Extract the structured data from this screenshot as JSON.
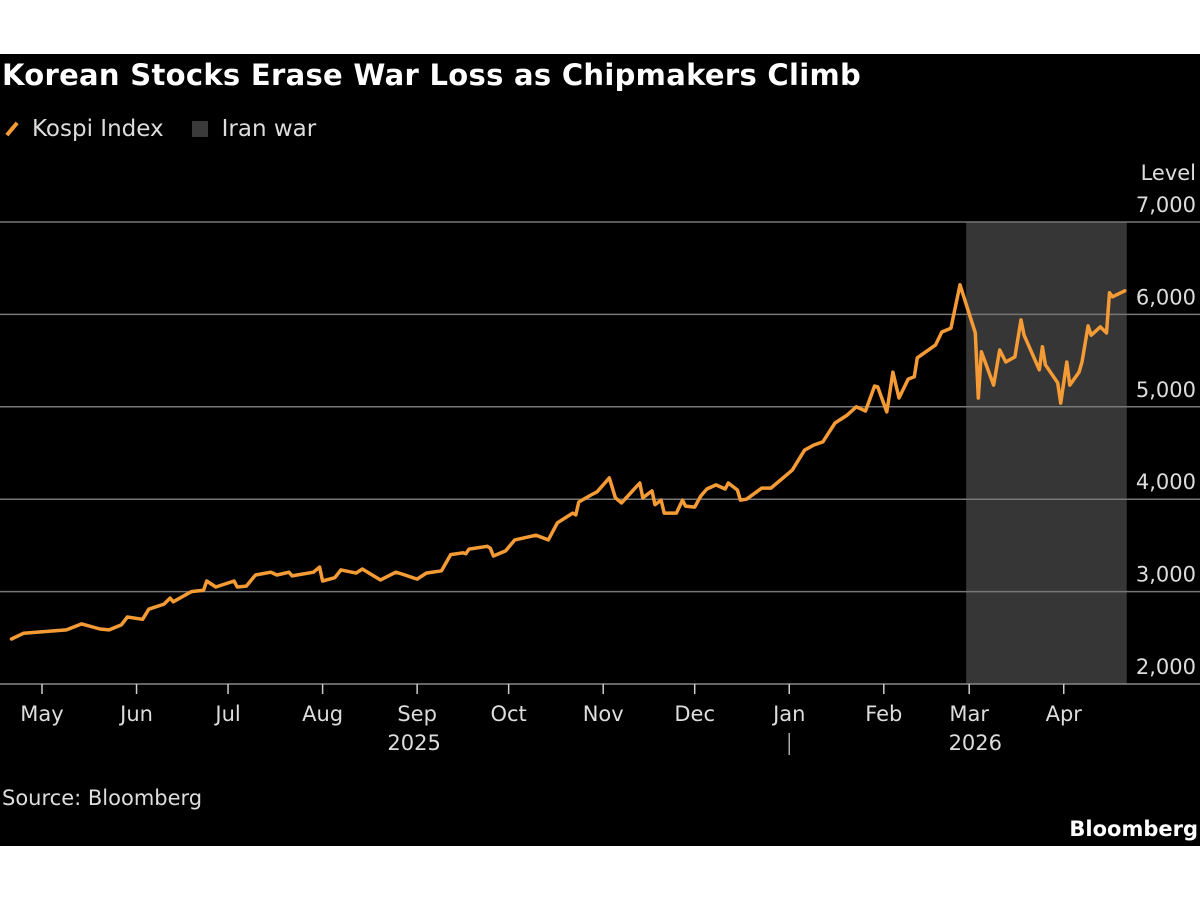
{
  "title": "Korean Stocks Erase War Loss as Chipmakers Climb",
  "legend": [
    {
      "label": "Kospi Index",
      "kind": "line",
      "color": "#f59b35"
    },
    {
      "label": "Iran war",
      "kind": "shaded-region",
      "color": "#363636"
    }
  ],
  "source": "Source: Bloomberg",
  "logo": "Bloomberg",
  "chart_data": {
    "type": "line",
    "title": "Korean Stocks Erase War Loss as Chipmakers Climb",
    "ylabel": "Level",
    "ylim": [
      2000,
      7000
    ],
    "yticks": [
      {
        "value": 2000,
        "label": "2,000"
      },
      {
        "value": 3000,
        "label": "3,000"
      },
      {
        "value": 4000,
        "label": "4,000"
      },
      {
        "value": 5000,
        "label": "5,000"
      },
      {
        "value": 6000,
        "label": "6,000"
      },
      {
        "value": 7000,
        "label": "7,000"
      }
    ],
    "xticks": [
      {
        "date": "2025-05-01",
        "label": "May"
      },
      {
        "date": "2025-06-01",
        "label": "Jun"
      },
      {
        "date": "2025-07-01",
        "label": "Jul"
      },
      {
        "date": "2025-08-01",
        "label": "Aug"
      },
      {
        "date": "2025-09-01",
        "label": "Sep"
      },
      {
        "date": "2025-10-01",
        "label": "Oct"
      },
      {
        "date": "2025-11-01",
        "label": "Nov"
      },
      {
        "date": "2025-12-01",
        "label": "Dec"
      },
      {
        "date": "2026-01-01",
        "label": "Jan"
      },
      {
        "date": "2026-02-01",
        "label": "Feb"
      },
      {
        "date": "2026-03-01",
        "label": "Mar"
      },
      {
        "date": "2026-04-01",
        "label": "Apr"
      }
    ],
    "year_labels": [
      {
        "date": "2025-08-31",
        "label": "2025"
      },
      {
        "date": "2026-03-03",
        "label": "2026"
      }
    ],
    "grid": true,
    "legend_placement": "top-left",
    "shaded_region": {
      "label": "Iran war",
      "start": "2026-02-28",
      "end": "2026-04-21",
      "color": "#363636"
    },
    "series": [
      {
        "name": "Kospi Index",
        "color": "#f59b35",
        "points": [
          [
            "2025-04-21",
            2487
          ],
          [
            "2025-04-25",
            2550
          ],
          [
            "2025-05-09",
            2585
          ],
          [
            "2025-05-14",
            2650
          ],
          [
            "2025-05-20",
            2595
          ],
          [
            "2025-05-23",
            2585
          ],
          [
            "2025-05-27",
            2640
          ],
          [
            "2025-05-29",
            2725
          ],
          [
            "2025-06-03",
            2700
          ],
          [
            "2025-06-05",
            2810
          ],
          [
            "2025-06-10",
            2865
          ],
          [
            "2025-06-12",
            2930
          ],
          [
            "2025-06-13",
            2890
          ],
          [
            "2025-06-19",
            3000
          ],
          [
            "2025-06-23",
            3015
          ],
          [
            "2025-06-24",
            3115
          ],
          [
            "2025-06-27",
            3050
          ],
          [
            "2025-07-03",
            3115
          ],
          [
            "2025-07-04",
            3050
          ],
          [
            "2025-07-07",
            3060
          ],
          [
            "2025-07-10",
            3180
          ],
          [
            "2025-07-15",
            3210
          ],
          [
            "2025-07-17",
            3180
          ],
          [
            "2025-07-21",
            3210
          ],
          [
            "2025-07-22",
            3170
          ],
          [
            "2025-07-29",
            3210
          ],
          [
            "2025-07-31",
            3265
          ],
          [
            "2025-08-01",
            3115
          ],
          [
            "2025-08-05",
            3150
          ],
          [
            "2025-08-07",
            3235
          ],
          [
            "2025-08-12",
            3200
          ],
          [
            "2025-08-14",
            3245
          ],
          [
            "2025-08-20",
            3125
          ],
          [
            "2025-08-25",
            3210
          ],
          [
            "2025-08-27",
            3190
          ],
          [
            "2025-09-01",
            3135
          ],
          [
            "2025-09-04",
            3200
          ],
          [
            "2025-09-09",
            3225
          ],
          [
            "2025-09-12",
            3400
          ],
          [
            "2025-09-16",
            3420
          ],
          [
            "2025-09-17",
            3410
          ],
          [
            "2025-09-18",
            3460
          ],
          [
            "2025-09-24",
            3490
          ],
          [
            "2025-09-25",
            3470
          ],
          [
            "2025-09-26",
            3385
          ],
          [
            "2025-09-30",
            3440
          ],
          [
            "2025-10-03",
            3560
          ],
          [
            "2025-10-10",
            3610
          ],
          [
            "2025-10-14",
            3560
          ],
          [
            "2025-10-17",
            3745
          ],
          [
            "2025-10-22",
            3850
          ],
          [
            "2025-10-23",
            3830
          ],
          [
            "2025-10-24",
            3970
          ],
          [
            "2025-10-28",
            4045
          ],
          [
            "2025-10-30",
            4080
          ],
          [
            "2025-11-03",
            4230
          ],
          [
            "2025-11-05",
            4015
          ],
          [
            "2025-11-07",
            3960
          ],
          [
            "2025-11-13",
            4175
          ],
          [
            "2025-11-14",
            4015
          ],
          [
            "2025-11-17",
            4090
          ],
          [
            "2025-11-18",
            3940
          ],
          [
            "2025-11-20",
            3990
          ],
          [
            "2025-11-21",
            3850
          ],
          [
            "2025-11-25",
            3850
          ],
          [
            "2025-11-27",
            3990
          ],
          [
            "2025-11-28",
            3925
          ],
          [
            "2025-12-01",
            3915
          ],
          [
            "2025-12-03",
            4035
          ],
          [
            "2025-12-05",
            4110
          ],
          [
            "2025-12-08",
            4155
          ],
          [
            "2025-12-11",
            4110
          ],
          [
            "2025-12-12",
            4175
          ],
          [
            "2025-12-15",
            4100
          ],
          [
            "2025-12-16",
            3990
          ],
          [
            "2025-12-18",
            4000
          ],
          [
            "2025-12-23",
            4120
          ],
          [
            "2025-12-26",
            4120
          ],
          [
            "2025-12-30",
            4230
          ],
          [
            "2026-01-02",
            4315
          ],
          [
            "2026-01-06",
            4530
          ],
          [
            "2026-01-09",
            4585
          ],
          [
            "2026-01-12",
            4620
          ],
          [
            "2026-01-16",
            4825
          ],
          [
            "2026-01-20",
            4910
          ],
          [
            "2026-01-23",
            5000
          ],
          [
            "2026-01-26",
            4955
          ],
          [
            "2026-01-29",
            5225
          ],
          [
            "2026-01-30",
            5215
          ],
          [
            "2026-02-02",
            4945
          ],
          [
            "2026-02-04",
            5375
          ],
          [
            "2026-02-06",
            5095
          ],
          [
            "2026-02-09",
            5300
          ],
          [
            "2026-02-11",
            5325
          ],
          [
            "2026-02-12",
            5530
          ],
          [
            "2026-02-18",
            5670
          ],
          [
            "2026-02-20",
            5810
          ],
          [
            "2026-02-23",
            5850
          ],
          [
            "2026-02-26",
            6320
          ],
          [
            "2026-03-03",
            5800
          ],
          [
            "2026-03-04",
            5095
          ],
          [
            "2026-03-05",
            5595
          ],
          [
            "2026-03-09",
            5235
          ],
          [
            "2026-03-11",
            5615
          ],
          [
            "2026-03-13",
            5485
          ],
          [
            "2026-03-16",
            5540
          ],
          [
            "2026-03-18",
            5940
          ],
          [
            "2026-03-19",
            5775
          ],
          [
            "2026-03-24",
            5400
          ],
          [
            "2026-03-25",
            5650
          ],
          [
            "2026-03-26",
            5455
          ],
          [
            "2026-03-30",
            5260
          ],
          [
            "2026-03-31",
            5040
          ],
          [
            "2026-04-02",
            5485
          ],
          [
            "2026-04-03",
            5235
          ],
          [
            "2026-04-06",
            5375
          ],
          [
            "2026-04-07",
            5485
          ],
          [
            "2026-04-09",
            5875
          ],
          [
            "2026-04-10",
            5775
          ],
          [
            "2026-04-13",
            5865
          ],
          [
            "2026-04-15",
            5800
          ],
          [
            "2026-04-16",
            6235
          ],
          [
            "2026-04-17",
            6190
          ],
          [
            "2026-04-21",
            6255
          ]
        ]
      }
    ]
  }
}
